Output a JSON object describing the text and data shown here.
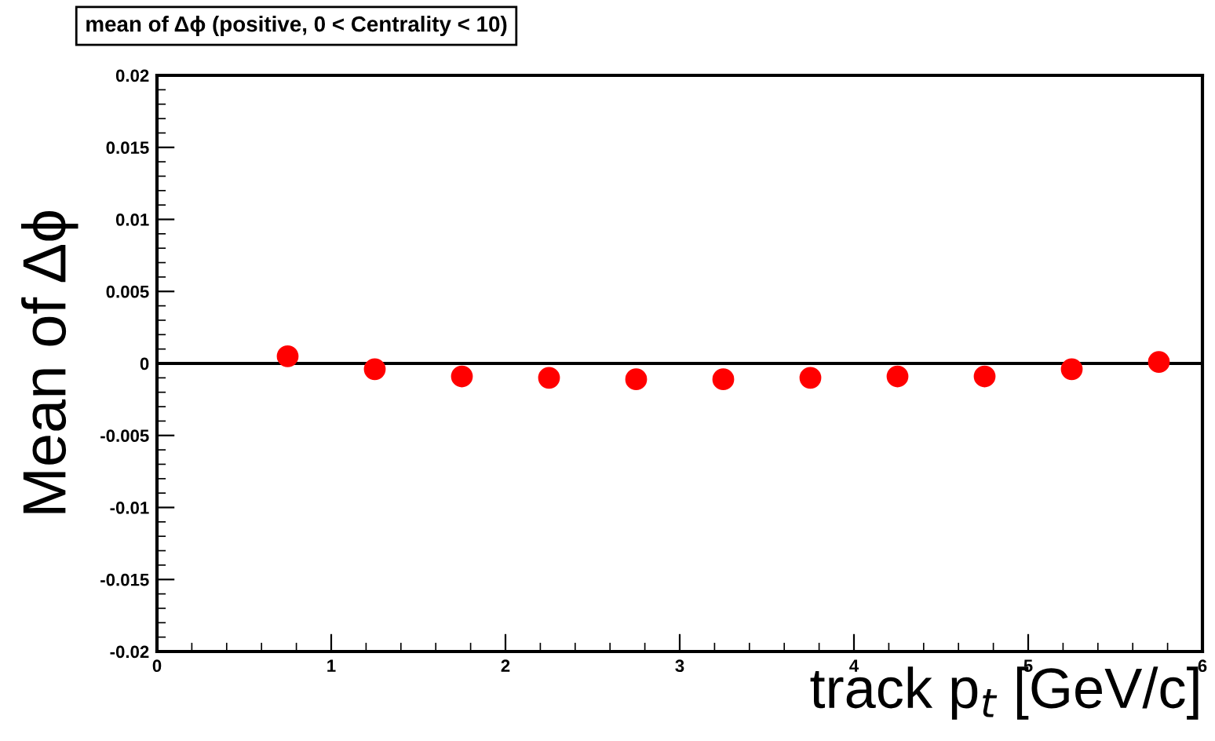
{
  "chart_data": {
    "type": "scatter",
    "title": "mean of Δϕ (positive, 0 < Centrality < 10)",
    "xlabel": "track p$_{t}$ [GeV/c]",
    "ylabel": "Mean of Δϕ",
    "x": [
      0.75,
      1.25,
      1.75,
      2.25,
      2.75,
      3.25,
      3.75,
      4.25,
      4.75,
      5.25,
      5.75
    ],
    "series": [
      {
        "color": "#ff0000",
        "values": [
          0.0005,
          -0.0004,
          -0.0009,
          -0.001,
          -0.0011,
          -0.0011,
          -0.001,
          -0.0009,
          -0.0009,
          -0.0004,
          0.0001
        ]
      }
    ],
    "xlim": [
      0,
      6
    ],
    "ylim": [
      -0.02,
      0.02
    ],
    "xticks": [
      0,
      1,
      2,
      3,
      4,
      5,
      6
    ],
    "yticks": [
      -0.02,
      -0.015,
      -0.01,
      -0.005,
      0,
      0.005,
      0.01,
      0.015,
      0.02
    ],
    "ref_lines": [
      {
        "axis": "y",
        "value": 0,
        "color": "#000000"
      }
    ],
    "marker": "circle",
    "grid": false,
    "legend": false
  }
}
